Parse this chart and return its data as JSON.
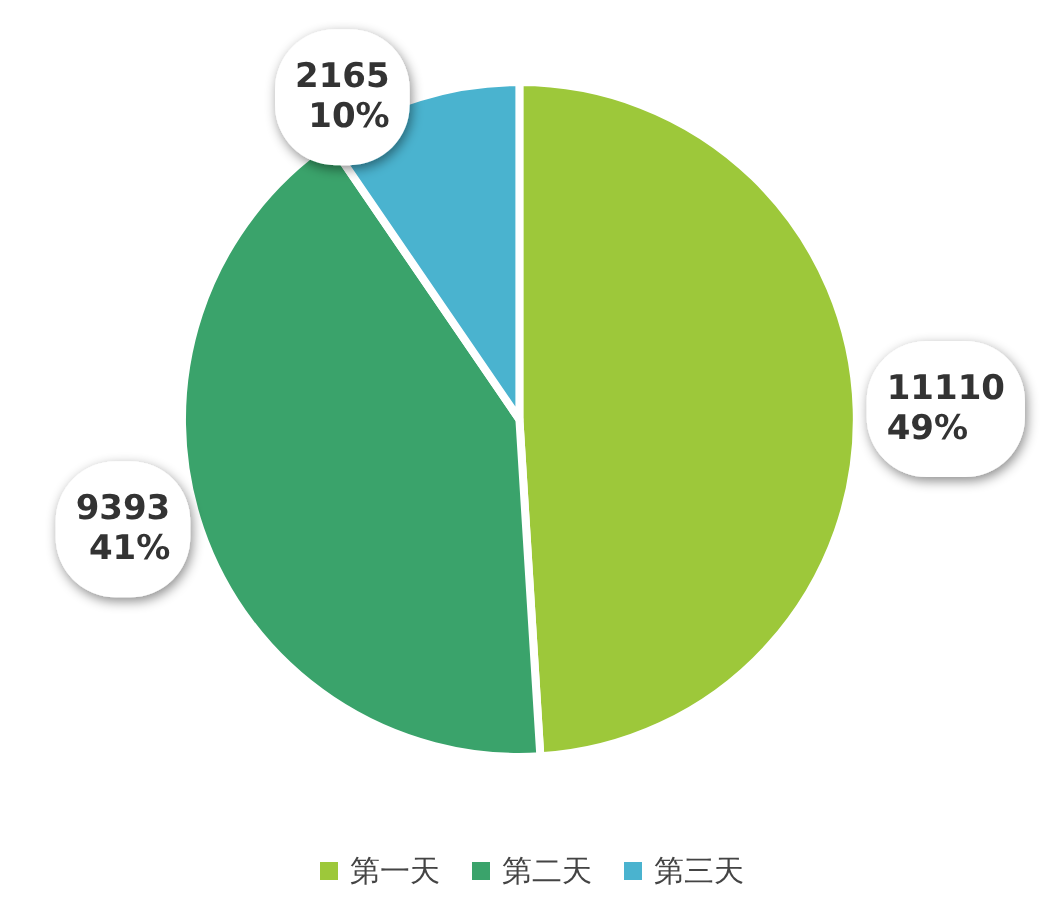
{
  "chart_data": {
    "type": "pie",
    "categories": [
      "第一天",
      "第二天",
      "第三天"
    ],
    "values": [
      11110,
      9393,
      2165
    ],
    "colors": [
      "#9dc83a",
      "#3aa36b",
      "#4ab3cf"
    ],
    "value_labels": [
      "11110\n49%",
      "9393\n41%",
      "2165\n10%"
    ],
    "legend": "bottom"
  }
}
